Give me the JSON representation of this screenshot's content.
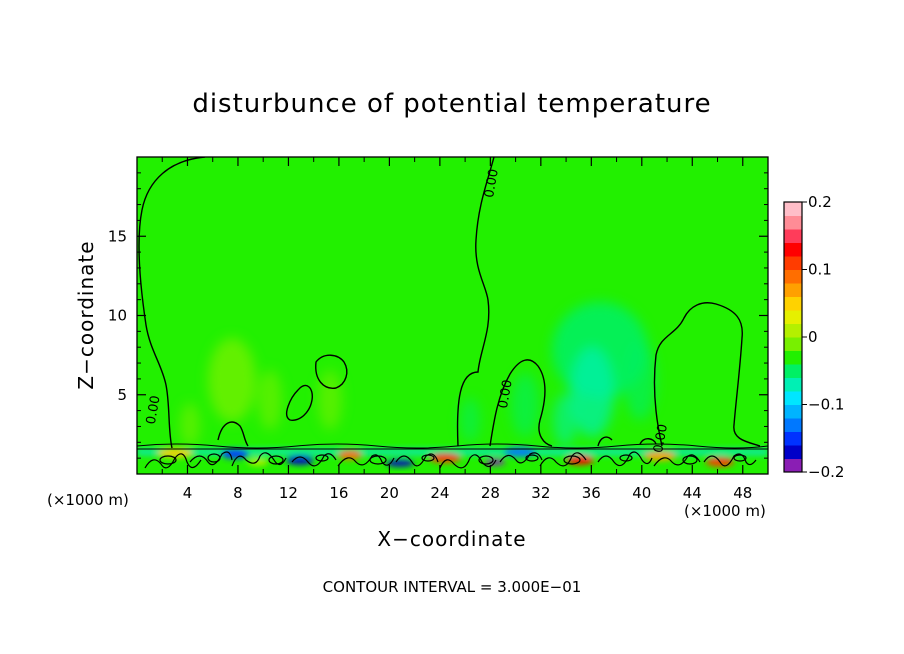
{
  "chart_data": {
    "type": "heatmap",
    "title": "disturbunce of potential temperature",
    "xlabel": "X−coordinate",
    "ylabel": "Z−coordinate",
    "x_unit_left": "(×1000 m)",
    "x_unit_right": "(×1000 m)",
    "xlim": [
      0,
      50
    ],
    "ylim": [
      0,
      20
    ],
    "xticks": [
      {
        "value": 4,
        "label": "4"
      },
      {
        "value": 8,
        "label": "8"
      },
      {
        "value": 12,
        "label": "12"
      },
      {
        "value": 16,
        "label": "16"
      },
      {
        "value": 20,
        "label": "20"
      },
      {
        "value": 24,
        "label": "24"
      },
      {
        "value": 28,
        "label": "28"
      },
      {
        "value": 32,
        "label": "32"
      },
      {
        "value": 36,
        "label": "36"
      },
      {
        "value": 40,
        "label": "40"
      },
      {
        "value": 44,
        "label": "44"
      },
      {
        "value": 48,
        "label": "48"
      }
    ],
    "yticks": [
      {
        "value": 5,
        "label": "5"
      },
      {
        "value": 10,
        "label": "10"
      },
      {
        "value": 15,
        "label": "15"
      }
    ],
    "colorbar": {
      "range": [
        -0.2,
        0.2
      ],
      "ticks": [
        {
          "value": 0.2,
          "label": "0.2"
        },
        {
          "value": 0.1,
          "label": "0.1"
        },
        {
          "value": 0,
          "label": "0"
        },
        {
          "value": -0.1,
          "label": "−0.1"
        },
        {
          "value": -0.2,
          "label": "−0.2"
        }
      ],
      "colors": [
        "#8a1eb4",
        "#0000c8",
        "#0032ff",
        "#0078ff",
        "#00b4ff",
        "#00e6ff",
        "#00f0b4",
        "#00f064",
        "#22f000",
        "#78f000",
        "#b4f000",
        "#e6f000",
        "#ffd200",
        "#ffa000",
        "#ff6e00",
        "#ff3c00",
        "#ff0000",
        "#ff3c5a",
        "#ff8c96",
        "#ffbec8"
      ]
    },
    "background_value": 0.0,
    "contour_labels": [
      {
        "text": "0.00",
        "x": 1.6,
        "y": 4.0
      },
      {
        "text": "0.00",
        "x": 28.4,
        "y": 18.3
      },
      {
        "text": "0.00",
        "x": 29.5,
        "y": 5.0
      },
      {
        "text": "0.00",
        "x": 41.8,
        "y": 2.2
      }
    ],
    "contour_interval_text": "CONTOUR INTERVAL = 3.000E−01"
  }
}
